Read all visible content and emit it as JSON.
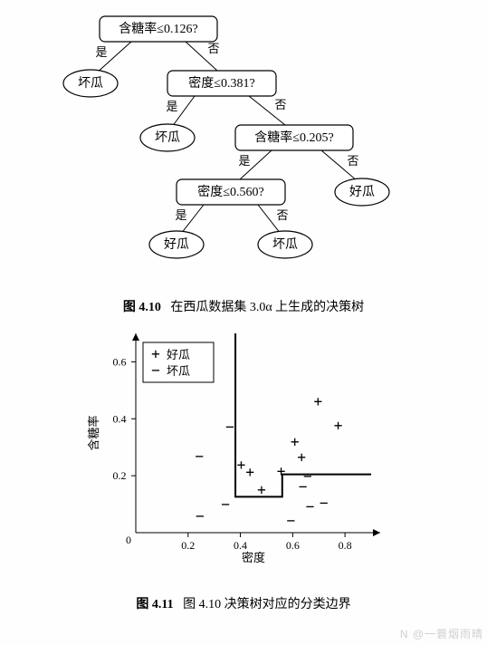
{
  "tree": {
    "node1": "含糖率≤0.126?",
    "node2": "密度≤0.381?",
    "node3": "含糖率≤0.205?",
    "node4": "密度≤0.560?",
    "leaf_bad": "坏瓜",
    "leaf_good": "好瓜",
    "yes": "是",
    "no": "否",
    "colors": {
      "stroke": "#000000",
      "fill": "#ffffff"
    },
    "node_fontsize": 14,
    "edge_fontsize": 13
  },
  "caption1": {
    "fig": "图 4.10",
    "text": "在西瓜数据集 3.0α 上生成的决策树"
  },
  "chart": {
    "type": "scatter",
    "xlabel": "密度",
    "ylabel": "含糖率",
    "xlim": [
      0,
      0.9
    ],
    "ylim": [
      0,
      0.7
    ],
    "xticks": [
      0.2,
      0.4,
      0.6,
      0.8
    ],
    "yticks": [
      0.2,
      0.4,
      0.6
    ],
    "xtick_labels": [
      "0.2",
      "0.4",
      "0.6",
      "0.8"
    ],
    "ytick_labels": [
      "0.2",
      "0.4",
      "0.6"
    ],
    "origin_label": "0",
    "legend": {
      "good": "好瓜",
      "bad": "坏瓜",
      "good_marker": "+",
      "bad_marker": "−"
    },
    "good_points": [
      [
        0.697,
        0.46
      ],
      [
        0.774,
        0.376
      ],
      [
        0.634,
        0.264
      ],
      [
        0.608,
        0.318
      ],
      [
        0.556,
        0.215
      ],
      [
        0.403,
        0.237
      ],
      [
        0.481,
        0.149
      ],
      [
        0.437,
        0.211
      ]
    ],
    "bad_points": [
      [
        0.666,
        0.091
      ],
      [
        0.243,
        0.267
      ],
      [
        0.245,
        0.057
      ],
      [
        0.343,
        0.099
      ],
      [
        0.639,
        0.161
      ],
      [
        0.657,
        0.198
      ],
      [
        0.36,
        0.37
      ],
      [
        0.593,
        0.042
      ],
      [
        0.719,
        0.103
      ]
    ],
    "boundary_segments": [
      {
        "from": [
          0.381,
          0.7
        ],
        "to": [
          0.381,
          0.126
        ]
      },
      {
        "from": [
          0.381,
          0.126
        ],
        "to": [
          0.56,
          0.126
        ]
      },
      {
        "from": [
          0.56,
          0.126
        ],
        "to": [
          0.56,
          0.205
        ]
      },
      {
        "from": [
          0.56,
          0.205
        ],
        "to": [
          0.9,
          0.205
        ]
      }
    ],
    "colors": {
      "axis": "#000000",
      "boundary": "#000000",
      "marker": "#000000",
      "bg": "#ffffff"
    },
    "fontsize": {
      "label": 13,
      "tick": 12,
      "legend": 13
    },
    "line_width": {
      "axis": 1,
      "boundary": 2
    }
  },
  "caption2": {
    "fig": "图 4.11",
    "text": "图 4.10 决策树对应的分类边界"
  },
  "watermark": "N @一蓑烟雨晴"
}
